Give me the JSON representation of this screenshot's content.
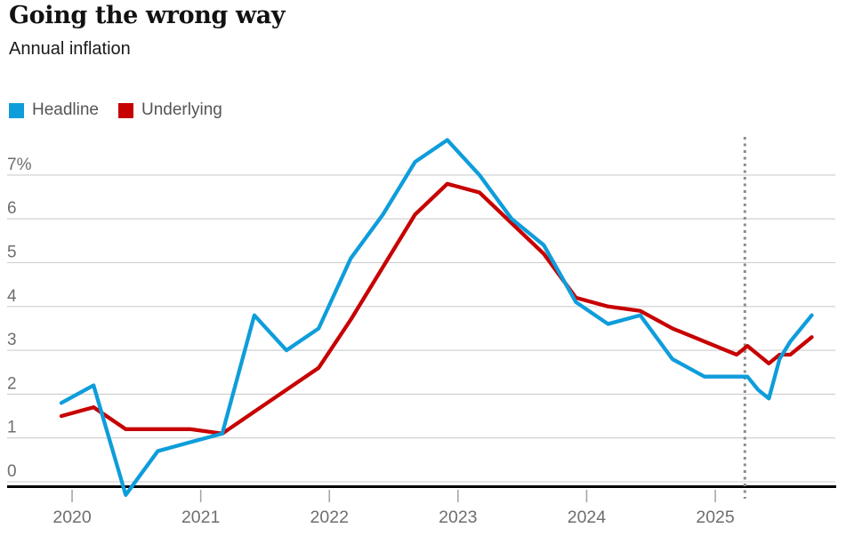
{
  "chart_data": {
    "type": "line",
    "title": "Going the wrong way",
    "subtitle": "Annual inflation",
    "unit": "%",
    "grid": "horizontal",
    "legend_position": "top-left",
    "xlim": [
      2019.85,
      2025.97
    ],
    "ylim": [
      -0.45,
      7.9
    ],
    "yticks": [
      {
        "value": 0,
        "label": "0"
      },
      {
        "value": 1,
        "label": "1"
      },
      {
        "value": 2,
        "label": "2"
      },
      {
        "value": 3,
        "label": "3"
      },
      {
        "value": 4,
        "label": "4"
      },
      {
        "value": 5,
        "label": "5"
      },
      {
        "value": 6,
        "label": "6"
      },
      {
        "value": 7,
        "label": "7%"
      }
    ],
    "xticks": [
      {
        "year": 2020,
        "label": "2020"
      },
      {
        "year": 2021,
        "label": "2021"
      },
      {
        "year": 2022,
        "label": "2022"
      },
      {
        "year": 2023,
        "label": "2023"
      },
      {
        "year": 2024,
        "label": "2024"
      },
      {
        "year": 2025,
        "label": "2025"
      }
    ],
    "annotations": [
      {
        "type": "vertical-dotted-line",
        "x": 2025.23,
        "color": "#8c8c8c"
      }
    ],
    "axis_colors": {
      "gridline": "#cdcdcd",
      "baseline": "#000000",
      "tick_label": "#6e6e6e"
    },
    "series": [
      {
        "name": "Headline",
        "color": "#0e9ddb",
        "points": [
          [
            2019.9167,
            1.8
          ],
          [
            2020.1667,
            2.2
          ],
          [
            2020.4167,
            -0.3
          ],
          [
            2020.6667,
            0.7
          ],
          [
            2020.9167,
            0.9
          ],
          [
            2021.1667,
            1.1
          ],
          [
            2021.4167,
            3.8
          ],
          [
            2021.6667,
            3.0
          ],
          [
            2021.9167,
            3.5
          ],
          [
            2022.1667,
            5.1
          ],
          [
            2022.4167,
            6.1
          ],
          [
            2022.6667,
            7.3
          ],
          [
            2022.9167,
            7.8
          ],
          [
            2023.1667,
            7.0
          ],
          [
            2023.4167,
            6.0
          ],
          [
            2023.6667,
            5.4
          ],
          [
            2023.9167,
            4.1
          ],
          [
            2024.1667,
            3.6
          ],
          [
            2024.4167,
            3.8
          ],
          [
            2024.6667,
            2.8
          ],
          [
            2024.9167,
            2.4
          ],
          [
            2025.1667,
            2.4
          ],
          [
            2025.25,
            2.4
          ],
          [
            2025.3333,
            2.1
          ],
          [
            2025.4167,
            1.9
          ],
          [
            2025.5,
            2.8
          ],
          [
            2025.5833,
            3.2
          ],
          [
            2025.6667,
            3.5
          ],
          [
            2025.75,
            3.8
          ]
        ]
      },
      {
        "name": "Underlying",
        "color": "#c70000",
        "points": [
          [
            2019.9167,
            1.5
          ],
          [
            2020.1667,
            1.7
          ],
          [
            2020.4167,
            1.2
          ],
          [
            2020.6667,
            1.2
          ],
          [
            2020.9167,
            1.2
          ],
          [
            2021.1667,
            1.1
          ],
          [
            2021.4167,
            1.6
          ],
          [
            2021.6667,
            2.1
          ],
          [
            2021.9167,
            2.6
          ],
          [
            2022.1667,
            3.7
          ],
          [
            2022.4167,
            4.9
          ],
          [
            2022.6667,
            6.1
          ],
          [
            2022.9167,
            6.8
          ],
          [
            2023.1667,
            6.6
          ],
          [
            2023.4167,
            5.9
          ],
          [
            2023.6667,
            5.2
          ],
          [
            2023.9167,
            4.2
          ],
          [
            2024.1667,
            4.0
          ],
          [
            2024.4167,
            3.9
          ],
          [
            2024.6667,
            3.5
          ],
          [
            2024.9167,
            3.2
          ],
          [
            2025.1667,
            2.9
          ],
          [
            2025.25,
            3.1
          ],
          [
            2025.3333,
            2.9
          ],
          [
            2025.4167,
            2.7
          ],
          [
            2025.5,
            2.9
          ],
          [
            2025.5833,
            2.9
          ],
          [
            2025.6667,
            3.1
          ],
          [
            2025.75,
            3.3
          ]
        ]
      }
    ]
  }
}
